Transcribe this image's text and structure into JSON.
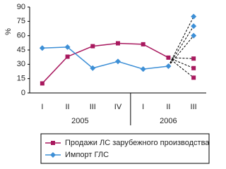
{
  "chart_data": {
    "type": "line",
    "y_label": "%",
    "categories": [
      "I",
      "II",
      "III",
      "IV",
      "I",
      "II",
      "III"
    ],
    "years": [
      "2005",
      "2006"
    ],
    "ylim": [
      0,
      90
    ],
    "yticks": [
      0,
      15,
      30,
      45,
      60,
      75,
      90
    ],
    "series": [
      {
        "name": "Продажи ЛС зарубежного производства",
        "color": "#a8185e",
        "marker": "square",
        "values": [
          10,
          38,
          49,
          52,
          51,
          37,
          null
        ],
        "forecast": [
          36,
          26,
          16
        ]
      },
      {
        "name": "Импорт ГЛС",
        "color": "#3d8fd6",
        "marker": "diamond",
        "values": [
          47,
          48,
          26,
          33,
          25,
          28,
          null
        ],
        "forecast": [
          80,
          70,
          60
        ]
      }
    ]
  }
}
